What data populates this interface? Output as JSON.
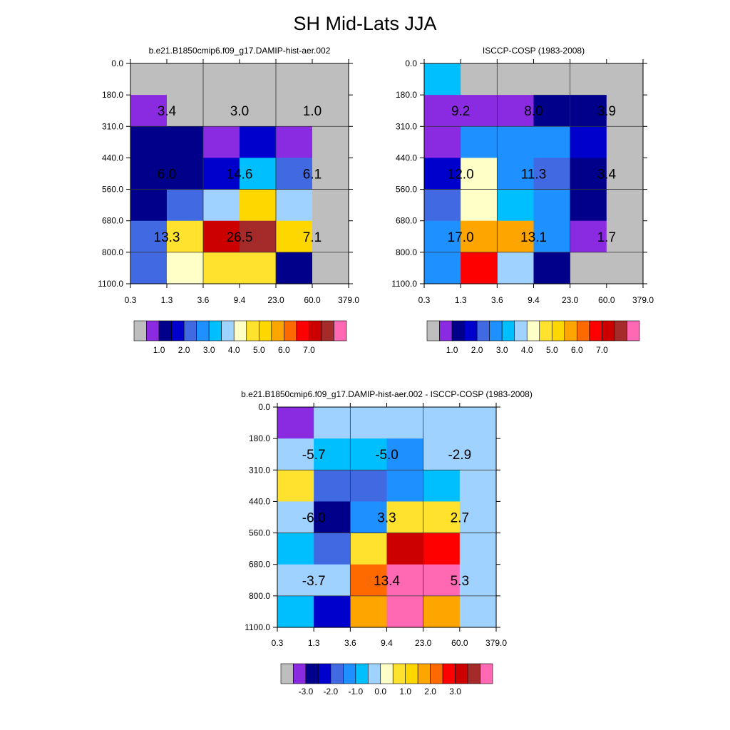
{
  "title": "SH Mid-Lats JJA",
  "chart_data": [
    {
      "type": "heatmap",
      "title": "b.e21.B1850cmip6.f09_g17.DAMIP-hist-aer.002",
      "x_tick_labels": [
        "0.3",
        "1.3",
        "3.6",
        "9.4",
        "23.0",
        "60.0",
        "379.0"
      ],
      "y_tick_labels": [
        "0.0",
        "180.0",
        "310.0",
        "440.0",
        "560.0",
        "680.0",
        "800.0",
        "1100.0"
      ],
      "cell_color_index": [
        [
          0,
          0,
          0,
          0,
          0,
          0
        ],
        [
          1,
          0,
          0,
          0,
          0,
          0
        ],
        [
          2,
          2,
          1,
          3,
          1,
          0
        ],
        [
          2,
          2,
          3,
          6,
          4,
          0
        ],
        [
          2,
          4,
          7,
          10,
          7,
          0
        ],
        [
          4,
          9,
          14,
          15,
          10,
          0
        ],
        [
          4,
          8,
          9,
          9,
          2,
          0
        ]
      ],
      "box_labels": [
        {
          "row": 0,
          "col": 0,
          "value": "3.4"
        },
        {
          "row": 0,
          "col": 1,
          "value": "3.0"
        },
        {
          "row": 0,
          "col": 2,
          "value": "1.0"
        },
        {
          "row": 1,
          "col": 0,
          "value": "6.0"
        },
        {
          "row": 1,
          "col": 1,
          "value": "14.6"
        },
        {
          "row": 1,
          "col": 2,
          "value": "6.1"
        },
        {
          "row": 2,
          "col": 0,
          "value": "13.3"
        },
        {
          "row": 2,
          "col": 1,
          "value": "26.5"
        },
        {
          "row": 2,
          "col": 2,
          "value": "7.1"
        }
      ],
      "colorbar": {
        "colors": [
          "#bebebe",
          "#8a2be2",
          "#00008b",
          "#0000cd",
          "#4169e1",
          "#1e90ff",
          "#00bfff",
          "#a0d2ff",
          "#ffffc8",
          "#ffe22e",
          "#ffd700",
          "#ffa500",
          "#ff6a00",
          "#ff0000",
          "#cd0000",
          "#a52a2a",
          "#ff69b4"
        ],
        "labels": [
          "1.0",
          "2.0",
          "3.0",
          "4.0",
          "5.0",
          "6.0",
          "7.0"
        ]
      }
    },
    {
      "type": "heatmap",
      "title": "ISCCP-COSP (1983-2008)",
      "x_tick_labels": [
        "0.3",
        "1.3",
        "3.6",
        "9.4",
        "23.0",
        "60.0",
        "379.0"
      ],
      "y_tick_labels": [
        "0.0",
        "180.0",
        "310.0",
        "440.0",
        "560.0",
        "680.0",
        "800.0",
        "1100.0"
      ],
      "cell_color_index": [
        [
          6,
          0,
          0,
          0,
          0,
          0
        ],
        [
          1,
          1,
          1,
          2,
          2,
          0
        ],
        [
          1,
          5,
          5,
          5,
          3,
          0
        ],
        [
          3,
          8,
          5,
          4,
          2,
          0
        ],
        [
          4,
          8,
          6,
          5,
          2,
          0
        ],
        [
          5,
          11,
          11,
          5,
          1,
          0
        ],
        [
          5,
          13,
          7,
          2,
          0,
          0
        ]
      ],
      "box_labels": [
        {
          "row": 0,
          "col": 0,
          "value": "9.2"
        },
        {
          "row": 0,
          "col": 1,
          "value": "8.0"
        },
        {
          "row": 0,
          "col": 2,
          "value": "3.9"
        },
        {
          "row": 1,
          "col": 0,
          "value": "12.0"
        },
        {
          "row": 1,
          "col": 1,
          "value": "11.3"
        },
        {
          "row": 1,
          "col": 2,
          "value": "3.4"
        },
        {
          "row": 2,
          "col": 0,
          "value": "17.0"
        },
        {
          "row": 2,
          "col": 1,
          "value": "13.1"
        },
        {
          "row": 2,
          "col": 2,
          "value": "1.7"
        }
      ],
      "colorbar": {
        "colors": [
          "#bebebe",
          "#8a2be2",
          "#00008b",
          "#0000cd",
          "#4169e1",
          "#1e90ff",
          "#00bfff",
          "#a0d2ff",
          "#ffffc8",
          "#ffe22e",
          "#ffd700",
          "#ffa500",
          "#ff6a00",
          "#ff0000",
          "#cd0000",
          "#a52a2a",
          "#ff69b4"
        ],
        "labels": [
          "1.0",
          "2.0",
          "3.0",
          "4.0",
          "5.0",
          "6.0",
          "7.0"
        ]
      }
    },
    {
      "type": "heatmap",
      "title": "b.e21.B1850cmip6.f09_g17.DAMIP-hist-aer.002 - ISCCP-COSP (1983-2008)",
      "x_tick_labels": [
        "0.3",
        "1.3",
        "3.6",
        "9.4",
        "23.0",
        "60.0",
        "379.0"
      ],
      "y_tick_labels": [
        "0.0",
        "180.0",
        "310.0",
        "440.0",
        "560.0",
        "680.0",
        "800.0",
        "1100.0"
      ],
      "cell_color_index": [
        [
          1,
          7,
          7,
          7,
          7,
          7
        ],
        [
          7,
          6,
          6,
          5,
          7,
          7
        ],
        [
          9,
          4,
          4,
          5,
          6,
          7
        ],
        [
          7,
          2,
          5,
          9,
          9,
          7
        ],
        [
          6,
          4,
          9,
          14,
          13,
          7
        ],
        [
          7,
          7,
          12,
          16,
          16,
          7
        ],
        [
          6,
          3,
          11,
          16,
          11,
          7
        ]
      ],
      "box_labels": [
        {
          "row": 0,
          "col": 0,
          "value": "-5.7"
        },
        {
          "row": 0,
          "col": 1,
          "value": "-5.0"
        },
        {
          "row": 0,
          "col": 2,
          "value": "-2.9"
        },
        {
          "row": 1,
          "col": 0,
          "value": "-6.0"
        },
        {
          "row": 1,
          "col": 1,
          "value": "3.3"
        },
        {
          "row": 1,
          "col": 2,
          "value": "2.7"
        },
        {
          "row": 2,
          "col": 0,
          "value": "-3.7"
        },
        {
          "row": 2,
          "col": 1,
          "value": "13.4"
        },
        {
          "row": 2,
          "col": 2,
          "value": "5.3"
        }
      ],
      "colorbar": {
        "colors": [
          "#bebebe",
          "#8a2be2",
          "#00008b",
          "#0000cd",
          "#4169e1",
          "#1e90ff",
          "#00bfff",
          "#a0d2ff",
          "#ffffc8",
          "#ffe22e",
          "#ffd700",
          "#ffa500",
          "#ff6a00",
          "#ff0000",
          "#cd0000",
          "#a52a2a",
          "#ff69b4"
        ],
        "labels": [
          "-3.0",
          "-2.0",
          "-1.0",
          "0.0",
          "1.0",
          "2.0",
          "3.0"
        ]
      }
    }
  ]
}
